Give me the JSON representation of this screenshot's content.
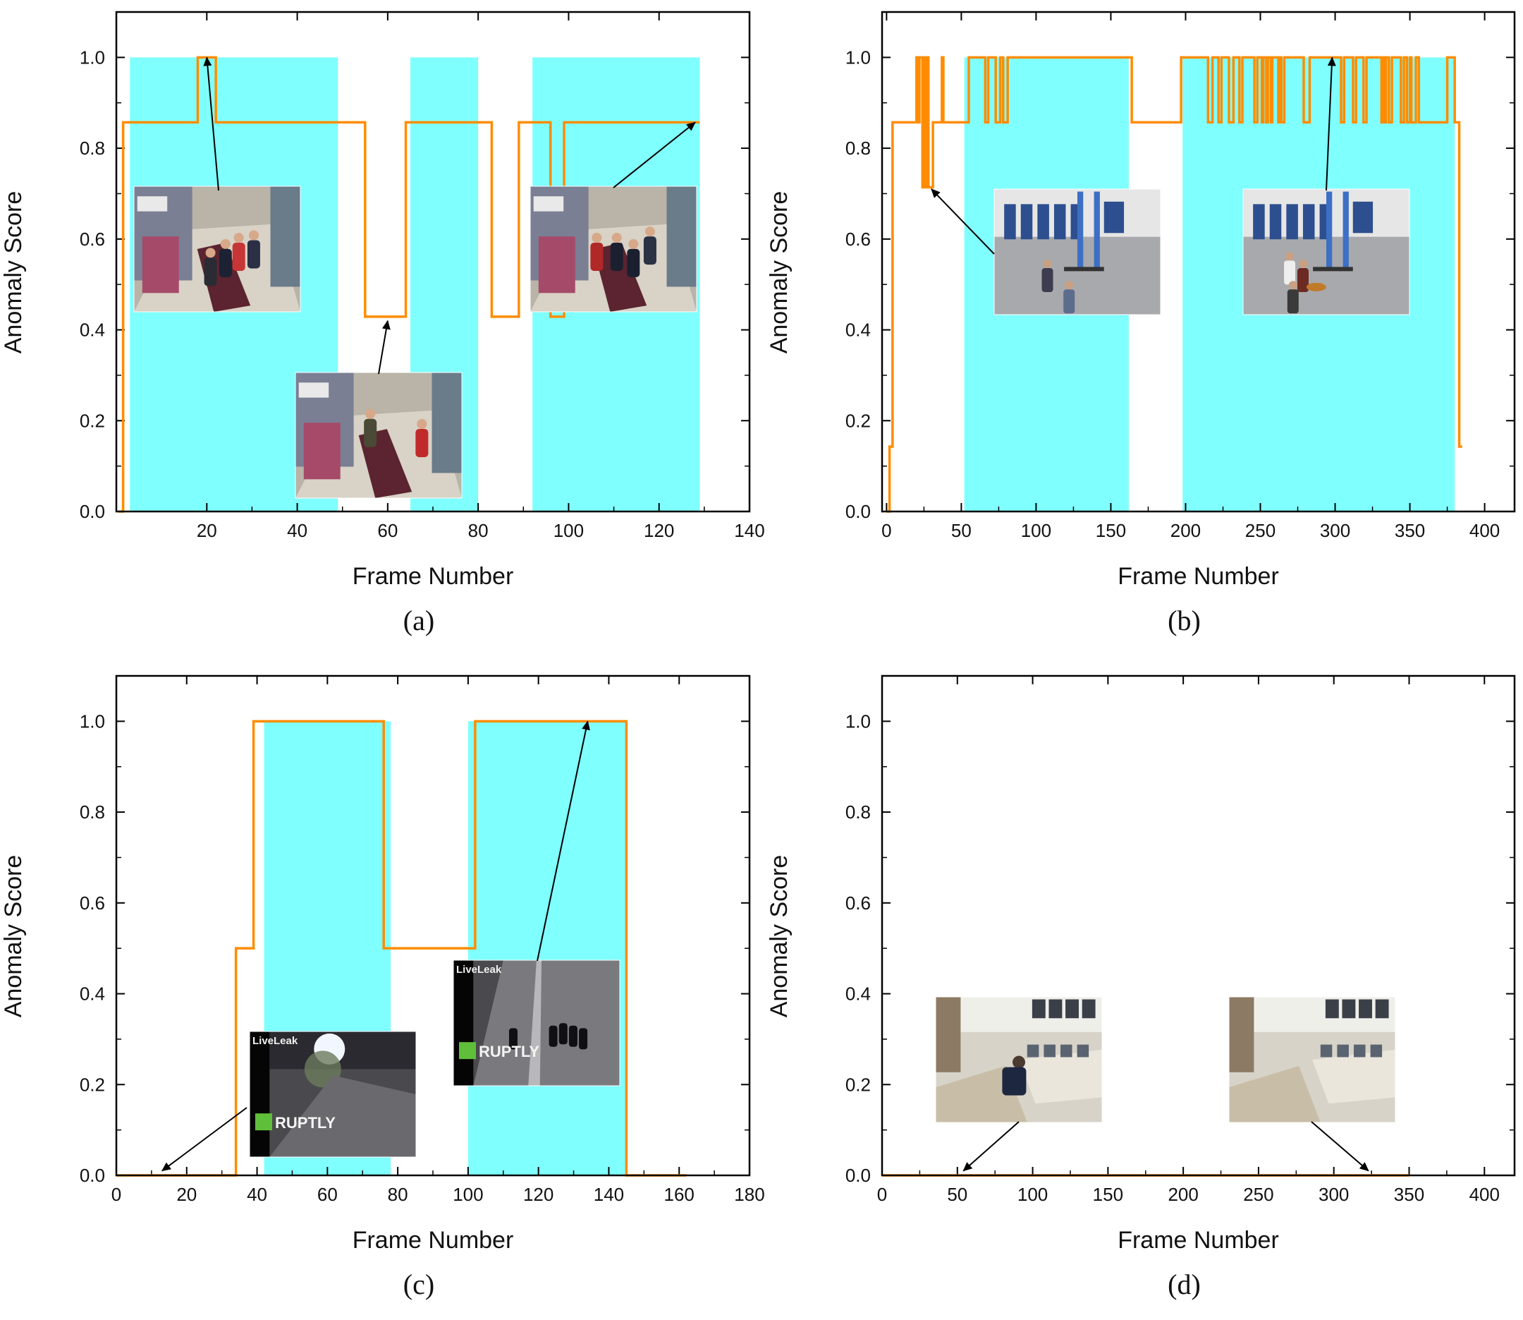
{
  "colors": {
    "anomaly_region": "#80ffff",
    "score_line": "#ff8c00",
    "axis": "#000000",
    "arrow": "#000000"
  },
  "chart_data": [
    {
      "type": "line",
      "caption": "(a)",
      "xlabel": "Frame Number",
      "ylabel": "Anomaly Score",
      "xlim": [
        0,
        140
      ],
      "ylim": [
        0,
        1.1
      ],
      "xticks": [
        20,
        40,
        60,
        80,
        100,
        120,
        140
      ],
      "yticks": [
        0.0,
        0.2,
        0.4,
        0.6,
        0.8,
        1.0
      ],
      "xtick_labels": [
        "20",
        "40",
        "60",
        "80",
        "100",
        "120",
        "140"
      ],
      "ytick_labels": [
        "0.0",
        "0.2",
        "0.4",
        "0.6",
        "0.8",
        "1.0"
      ],
      "anomaly_regions": [
        [
          3,
          49
        ],
        [
          65,
          80
        ],
        [
          92,
          129
        ]
      ],
      "series": [
        {
          "step": [
            [
              0.5,
              0
            ],
            [
              1.5,
              0.857
            ],
            [
              18,
              1.0
            ],
            [
              22,
              0.857
            ],
            [
              55,
              0.429
            ],
            [
              64,
              0.857
            ],
            [
              83,
              0.429
            ],
            [
              89,
              0.857
            ],
            [
              96,
              0.429
            ],
            [
              99,
              0.857
            ],
            [
              129,
              0.857
            ]
          ]
        }
      ],
      "thumbnails": [
        {
          "scene": "store",
          "arrow_to": [
            20,
            1.0
          ]
        },
        {
          "scene": "store",
          "arrow_to": [
            60,
            0.42
          ]
        },
        {
          "scene": "store",
          "arrow_to": [
            128,
            0.857
          ]
        }
      ]
    },
    {
      "type": "line",
      "caption": "(b)",
      "xlabel": "Frame Number",
      "ylabel": "Anomaly Score",
      "xlim": [
        -3,
        420
      ],
      "ylim": [
        0,
        1.1
      ],
      "xticks": [
        0,
        50,
        100,
        150,
        200,
        250,
        300,
        350,
        400
      ],
      "yticks": [
        0.0,
        0.2,
        0.4,
        0.6,
        0.8,
        1.0
      ],
      "xtick_labels": [
        "0",
        "50",
        "100",
        "150",
        "200",
        "250",
        "300",
        "350",
        "400"
      ],
      "ytick_labels": [
        "0.0",
        "0.2",
        "0.4",
        "0.6",
        "0.8",
        "1.0"
      ],
      "anomaly_regions": [
        [
          52,
          162
        ],
        [
          198,
          380
        ]
      ],
      "series": [
        {
          "step": [
            [
              0,
              0
            ],
            [
              2,
              0.143
            ],
            [
              4,
              0.857
            ],
            [
              20,
              1.0
            ],
            [
              21,
              0.857
            ],
            [
              22,
              1.0
            ],
            [
              24,
              0.714
            ],
            [
              25,
              1.0
            ],
            [
              26,
              0.714
            ],
            [
              27,
              1.0
            ],
            [
              28,
              0.714
            ],
            [
              31,
              0.857
            ],
            [
              37,
              1.0
            ],
            [
              38,
              0.857
            ],
            [
              52,
              0.857
            ],
            [
              55,
              1.0
            ],
            [
              66,
              0.857
            ],
            [
              68,
              1.0
            ],
            [
              73,
              0.857
            ],
            [
              76,
              1.0
            ],
            [
              78,
              0.857
            ],
            [
              81,
              1.0
            ],
            [
              164,
              0.857
            ],
            [
              197,
              1.0
            ],
            [
              215,
              0.857
            ],
            [
              218,
              1.0
            ],
            [
              222,
              0.857
            ],
            [
              224,
              1.0
            ],
            [
              229,
              0.857
            ],
            [
              232,
              1.0
            ],
            [
              236,
              0.857
            ],
            [
              238,
              1.0
            ],
            [
              246,
              0.857
            ],
            [
              248,
              1.0
            ],
            [
              251,
              0.857
            ],
            [
              252,
              1.0
            ],
            [
              254,
              0.857
            ],
            [
              255,
              1.0
            ],
            [
              257,
              0.857
            ],
            [
              258,
              1.0
            ],
            [
              262,
              0.857
            ],
            [
              263,
              1.0
            ],
            [
              264,
              0.857
            ],
            [
              266,
              1.0
            ],
            [
              279,
              0.857
            ],
            [
              283,
              1.0
            ],
            [
              304,
              0.857
            ],
            [
              306,
              1.0
            ],
            [
              312,
              0.857
            ],
            [
              314,
              1.0
            ],
            [
              319,
              0.857
            ],
            [
              321,
              1.0
            ],
            [
              331,
              0.857
            ],
            [
              332,
              1.0
            ],
            [
              333,
              0.857
            ],
            [
              334,
              1.0
            ],
            [
              336,
              0.857
            ],
            [
              338,
              1.0
            ],
            [
              344,
              0.857
            ],
            [
              346,
              1.0
            ],
            [
              348,
              0.857
            ],
            [
              350,
              1.0
            ],
            [
              351,
              0.857
            ],
            [
              354,
              1.0
            ],
            [
              356,
              0.857
            ],
            [
              375,
              1.0
            ],
            [
              380,
              0.857
            ],
            [
              383,
              0.143
            ],
            [
              385,
              0.143
            ]
          ]
        }
      ],
      "thumbnails": [
        {
          "scene": "garage",
          "arrow_to": [
            30,
            0.71
          ]
        },
        {
          "scene": "garage",
          "arrow_to": [
            298,
            1.0
          ]
        }
      ]
    },
    {
      "type": "line",
      "caption": "(c)",
      "xlabel": "Frame Number",
      "ylabel": "Anomaly Score",
      "xlim": [
        0,
        180
      ],
      "ylim": [
        0,
        1.1
      ],
      "xticks": [
        0,
        20,
        40,
        60,
        80,
        100,
        120,
        140,
        160,
        180
      ],
      "yticks": [
        0.0,
        0.2,
        0.4,
        0.6,
        0.8,
        1.0
      ],
      "xtick_labels": [
        "0",
        "20",
        "40",
        "60",
        "80",
        "100",
        "120",
        "140",
        "160",
        "180"
      ],
      "ytick_labels": [
        "0.0",
        "0.2",
        "0.4",
        "0.6",
        "0.8",
        "1.0"
      ],
      "anomaly_regions": [
        [
          42,
          78
        ],
        [
          100,
          145
        ]
      ],
      "series": [
        {
          "step": [
            [
              0,
              0
            ],
            [
              34,
              0.5
            ],
            [
              39,
              1.0
            ],
            [
              76,
              0.5
            ],
            [
              102,
              1.0
            ],
            [
              145,
              0
            ],
            [
              162,
              0
            ]
          ]
        }
      ],
      "thumbnails": [
        {
          "scene": "night-street",
          "overlay_top": "LiveLeak",
          "overlay_bottom": "RUPTLY",
          "arrow_to": [
            13,
            0.01
          ]
        },
        {
          "scene": "night-street",
          "overlay_top": "LiveLeak",
          "overlay_bottom": "RUPTLY",
          "arrow_to": [
            134,
            1.0
          ]
        }
      ]
    },
    {
      "type": "line",
      "caption": "(d)",
      "xlabel": "Frame Number",
      "ylabel": "Anomaly Score",
      "xlim": [
        0,
        420
      ],
      "ylim": [
        0,
        1.1
      ],
      "xticks": [
        0,
        50,
        100,
        150,
        200,
        250,
        300,
        350,
        400
      ],
      "yticks": [
        0.0,
        0.2,
        0.4,
        0.6,
        0.8,
        1.0
      ],
      "xtick_labels": [
        "0",
        "50",
        "100",
        "150",
        "200",
        "250",
        "300",
        "350",
        "400"
      ],
      "ytick_labels": [
        "0.0",
        "0.2",
        "0.4",
        "0.6",
        "0.8",
        "1.0"
      ],
      "anomaly_regions": [],
      "series": [
        {
          "step": [
            [
              0,
              0
            ],
            [
              350,
              0
            ]
          ]
        }
      ],
      "thumbnails": [
        {
          "scene": "office",
          "arrow_to": [
            54,
            0.01
          ]
        },
        {
          "scene": "office",
          "arrow_to": [
            323,
            0.01
          ]
        }
      ]
    }
  ]
}
